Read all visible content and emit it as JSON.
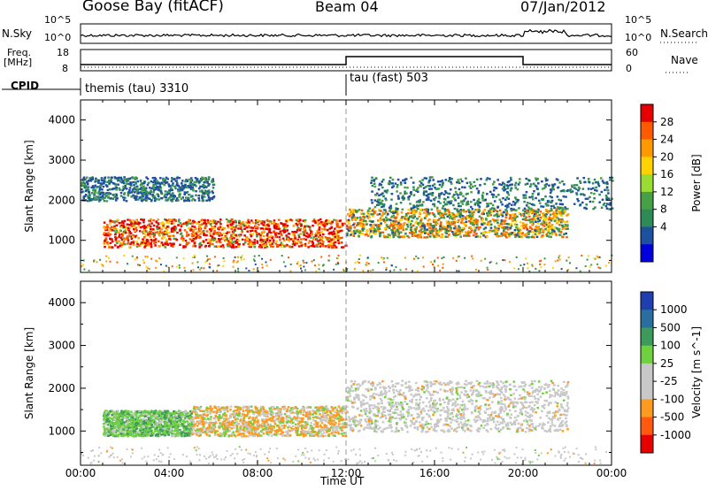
{
  "header": {
    "station": "Goose Bay (fitACF)",
    "beam": "Beam 04",
    "date": "07/Jan/2012"
  },
  "noise_panel": {
    "left_label": "N.Sky",
    "right_label": "N.Search",
    "left_ticks": [
      "10^5",
      "10^0"
    ],
    "right_ticks": [
      "10^5",
      "10^0"
    ]
  },
  "freq_panel": {
    "left_label_1": "Freq.",
    "left_label_2": "[MHz]",
    "left_ticks": [
      "18",
      "8"
    ],
    "right_label": "Nave",
    "right_ticks": [
      "60",
      "0"
    ]
  },
  "cpid_panel": {
    "label": "CPID",
    "modes": [
      {
        "name": "themis (tau) 3310",
        "start_hour": 0
      },
      {
        "name": "tau (fast) 503",
        "start_hour": 12
      }
    ]
  },
  "chart_data": [
    {
      "type": "heatmap",
      "name": "power",
      "ylabel": "Slant Range [km]",
      "yticks": [
        "4000",
        "3000",
        "2000",
        "1000"
      ],
      "ylim": [
        200,
        4500
      ],
      "xlim": [
        0,
        24
      ],
      "colorbar_label": "Power [dB]",
      "colorbar_ticks": [
        "28",
        "24",
        "20",
        "16",
        "12",
        "8",
        "4"
      ],
      "colorbar_colors": [
        "#e60000",
        "#ff5a00",
        "#ff9900",
        "#ffd200",
        "#9bdc32",
        "#46a046",
        "#2e8b57",
        "#1e50a0",
        "#0000dc"
      ],
      "echo_bands": [
        {
          "x0": 1.0,
          "x1": 12.0,
          "lo": 850,
          "hi": 1550,
          "level": "strong"
        },
        {
          "x0": 12.0,
          "x1": 22.0,
          "lo": 1100,
          "hi": 1800,
          "level": "moderate"
        },
        {
          "x0": 0.0,
          "x1": 6.0,
          "lo": 2000,
          "hi": 2600,
          "level": "weak"
        },
        {
          "x0": 13.0,
          "x1": 24.0,
          "lo": 1800,
          "hi": 2600,
          "level": "weak"
        }
      ]
    },
    {
      "type": "heatmap",
      "name": "velocity",
      "ylabel": "Slant Range [km]",
      "yticks": [
        "4000",
        "3000",
        "2000",
        "1000"
      ],
      "ylim": [
        200,
        4500
      ],
      "xlim": [
        0,
        24
      ],
      "colorbar_label": "Velocity [m s^-1]",
      "colorbar_ticks": [
        "1000",
        "500",
        "100",
        "25",
        "-25",
        "-100",
        "-500",
        "-1000"
      ],
      "colorbar_colors": [
        "#1f3fb0",
        "#2a6ea0",
        "#3c9a5a",
        "#6fd040",
        "#c8c8c8",
        "#c8c8c8",
        "#ff9a20",
        "#ff5a10",
        "#e60000"
      ],
      "echo_bands": [
        {
          "x0": 1.0,
          "x1": 5.0,
          "lo": 900,
          "hi": 1500,
          "level": "toward"
        },
        {
          "x0": 5.0,
          "x1": 12.0,
          "lo": 900,
          "hi": 1600,
          "level": "away"
        },
        {
          "x0": 12.0,
          "x1": 22.0,
          "lo": 1000,
          "hi": 2200,
          "level": "near-zero"
        }
      ]
    }
  ],
  "x_axis": {
    "ticks": [
      "00:00",
      "04:00",
      "08:00",
      "12:00",
      "16:00",
      "20:00",
      "00:00"
    ],
    "label": "Time UT"
  }
}
